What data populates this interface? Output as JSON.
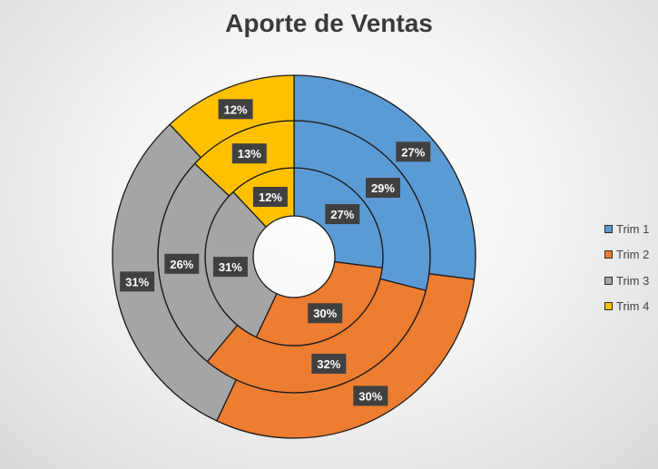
{
  "chart_data": {
    "type": "doughnut",
    "title": "Aporte de Ventas",
    "categories": [
      "Trim 1",
      "Trim 2",
      "Trim 3",
      "Trim 4"
    ],
    "colors": [
      "#5B9BD5",
      "#ED7D31",
      "#A5A5A5",
      "#FFC000"
    ],
    "series": [
      {
        "ring": "inner",
        "values": [
          27,
          30,
          31,
          12
        ],
        "labels": [
          "27%",
          "30%",
          "31%",
          "12%"
        ]
      },
      {
        "ring": "middle",
        "values": [
          29,
          32,
          26,
          13
        ],
        "labels": [
          "29%",
          "32%",
          "26%",
          "13%"
        ]
      },
      {
        "ring": "outer",
        "values": [
          27,
          30,
          31,
          12
        ],
        "labels": [
          "27%",
          "30%",
          "31%",
          "12%"
        ]
      }
    ],
    "legend": {
      "position": "right"
    },
    "data_label_style": {
      "background": "#404040",
      "text": "#ffffff"
    }
  }
}
